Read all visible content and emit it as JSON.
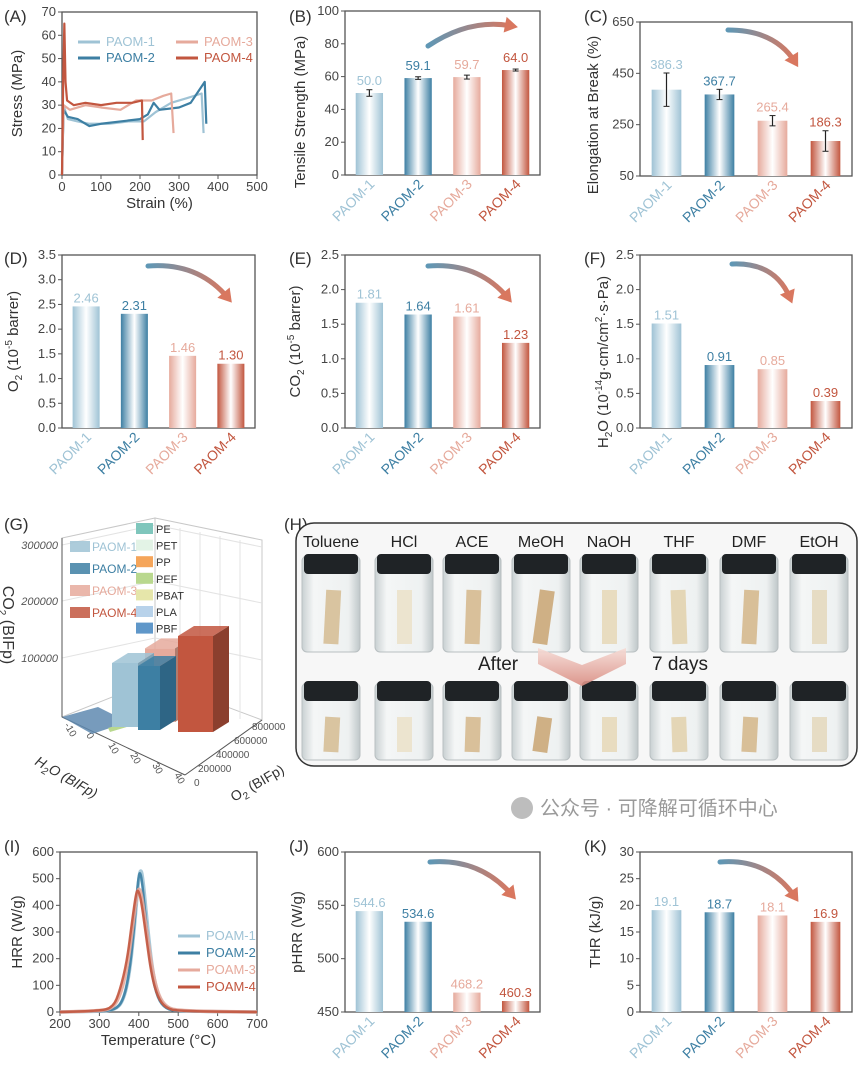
{
  "series_colors": [
    "#9fc3d5",
    "#3d7fa3",
    "#e6aa9c",
    "#c2563f"
  ],
  "watermark": "公众号 · 可降解可循环中心",
  "chart_data": [
    {
      "panel": "(A)",
      "type": "line",
      "xlabel": "Strain (%)",
      "ylabel": [
        {
          "t": "Stress (MPa)"
        }
      ],
      "xlim": [
        0,
        500
      ],
      "ylim": [
        0,
        70
      ],
      "xticks": [
        "0",
        "100",
        "200",
        "300",
        "400",
        "500"
      ],
      "yticks": [
        "0",
        "10",
        "20",
        "30",
        "40",
        "50",
        "60",
        "70"
      ],
      "series": [
        {
          "name": "PAOM-1",
          "points": [
            [
              0,
              0
            ],
            [
              4,
              30
            ],
            [
              15,
              24
            ],
            [
              40,
              23
            ],
            [
              70,
              22
            ],
            [
              120,
              22
            ],
            [
              170,
              23
            ],
            [
              210,
              23
            ],
            [
              240,
              27
            ],
            [
              280,
              31
            ],
            [
              320,
              33
            ],
            [
              358,
              35
            ],
            [
              363,
              18
            ]
          ]
        },
        {
          "name": "PAOM-2",
          "points": [
            [
              0,
              0
            ],
            [
              4,
              28
            ],
            [
              15,
              25
            ],
            [
              40,
              24
            ],
            [
              70,
              21
            ],
            [
              100,
              22
            ],
            [
              150,
              23
            ],
            [
              200,
              24
            ],
            [
              220,
              26
            ],
            [
              235,
              31
            ],
            [
              250,
              28
            ],
            [
              300,
              29
            ],
            [
              330,
              31
            ],
            [
              350,
              36
            ],
            [
              366,
              40
            ],
            [
              370,
              22
            ]
          ]
        },
        {
          "name": "PAOM-3",
          "points": [
            [
              0,
              0
            ],
            [
              4,
              30
            ],
            [
              20,
              28
            ],
            [
              60,
              30
            ],
            [
              100,
              29
            ],
            [
              150,
              28
            ],
            [
              190,
              32
            ],
            [
              230,
              32
            ],
            [
              260,
              34
            ],
            [
              280,
              35
            ],
            [
              286,
              18
            ]
          ]
        },
        {
          "name": "PAOM-4",
          "points": [
            [
              0,
              0
            ],
            [
              3,
              40
            ],
            [
              6,
              65
            ],
            [
              9,
              40
            ],
            [
              13,
              32
            ],
            [
              30,
              30
            ],
            [
              60,
              31
            ],
            [
              100,
              30
            ],
            [
              140,
              31
            ],
            [
              180,
              31
            ],
            [
              205,
              32
            ],
            [
              207,
              15
            ]
          ]
        }
      ]
    },
    {
      "panel": "(B)",
      "type": "bar",
      "categories": [
        "PAOM-1",
        "PAOM-2",
        "PAOM-3",
        "PAOM-4"
      ],
      "values": [
        50.0,
        59.1,
        59.7,
        64.0
      ],
      "errors": [
        2,
        0.8,
        1.2,
        0.6
      ],
      "value_labels": [
        "50.0",
        "59.1",
        "59.7",
        "64.0"
      ],
      "ylabel": [
        {
          "t": "Tensile Strength (MPa)"
        }
      ],
      "ylim": [
        0,
        100
      ],
      "yticks": [
        "0",
        "20",
        "40",
        "60",
        "80",
        "100"
      ],
      "trend": "increasing"
    },
    {
      "panel": "(C)",
      "type": "bar",
      "categories": [
        "PAOM-1",
        "PAOM-2",
        "PAOM-3",
        "PAOM-4"
      ],
      "values": [
        386.3,
        367.7,
        265.4,
        186.3
      ],
      "errors": [
        65,
        20,
        20,
        40
      ],
      "value_labels": [
        "386.3",
        "367.7",
        "265.4",
        "186.3"
      ],
      "ylabel": [
        {
          "t": "Elongation at Break (%)"
        }
      ],
      "ylim": [
        50,
        650
      ],
      "yticks": [
        "50",
        "250",
        "450",
        "650"
      ],
      "trend": "decreasing"
    },
    {
      "panel": "(D)",
      "type": "bar",
      "categories": [
        "PAOM-1",
        "PAOM-2",
        "PAOM-3",
        "PAOM-4"
      ],
      "values": [
        2.46,
        2.31,
        1.46,
        1.3
      ],
      "value_labels": [
        "2.46",
        "2.31",
        "1.46",
        "1.30"
      ],
      "ylabel": [
        {
          "t": "O"
        },
        {
          "t": "2",
          "s": "sub"
        },
        {
          "t": " (10"
        },
        {
          "t": "-5",
          "s": "sup"
        },
        {
          "t": " barrer)"
        }
      ],
      "ylim": [
        0,
        3.5
      ],
      "yticks": [
        "0.0",
        "0.5",
        "1.0",
        "1.5",
        "2.0",
        "2.5",
        "3.0",
        "3.5"
      ],
      "trend": "decreasing"
    },
    {
      "panel": "(E)",
      "type": "bar",
      "categories": [
        "PAOM-1",
        "PAOM-2",
        "PAOM-3",
        "PAOM-4"
      ],
      "values": [
        1.81,
        1.64,
        1.61,
        1.23
      ],
      "value_labels": [
        "1.81",
        "1.64",
        "1.61",
        "1.23"
      ],
      "ylabel": [
        {
          "t": "CO"
        },
        {
          "t": "2",
          "s": "sub"
        },
        {
          "t": " (10"
        },
        {
          "t": "-5",
          "s": "sup"
        },
        {
          "t": " barrer)"
        }
      ],
      "ylim": [
        0,
        2.5
      ],
      "yticks": [
        "0.0",
        "0.5",
        "1.0",
        "1.5",
        "2.0",
        "2.5"
      ],
      "trend": "decreasing"
    },
    {
      "panel": "(F)",
      "type": "bar",
      "categories": [
        "PAOM-1",
        "PAOM-2",
        "PAOM-3",
        "PAOM-4"
      ],
      "values": [
        1.51,
        0.91,
        0.85,
        0.39
      ],
      "value_labels": [
        "1.51",
        "0.91",
        "0.85",
        "0.39"
      ],
      "ylabel": [
        {
          "t": "H"
        },
        {
          "t": "2",
          "s": "sub"
        },
        {
          "t": "O (10"
        },
        {
          "t": "-14",
          "s": "sup"
        },
        {
          "t": "g·cm/cm"
        },
        {
          "t": "2",
          "s": "sup"
        },
        {
          "t": "·s·Pa)"
        }
      ],
      "ylim": [
        0,
        2.5
      ],
      "yticks": [
        "0.0",
        "0.5",
        "1.0",
        "1.5",
        "2.0",
        "2.5"
      ],
      "trend": "decreasing"
    },
    {
      "panel": "(G)",
      "type": "bar3d",
      "zlabel": [
        {
          "t": "CO"
        },
        {
          "t": "2",
          "s": "sub"
        },
        {
          "t": " (BIFp)"
        }
      ],
      "xlabel": [
        {
          "t": "H"
        },
        {
          "t": "2",
          "s": "sub"
        },
        {
          "t": "O (BIFp)"
        }
      ],
      "ylabel": [
        {
          "t": "O"
        },
        {
          "t": "2",
          "s": "sub"
        },
        {
          "t": " (BIFp)"
        }
      ],
      "zticks": [
        "100000",
        "200000",
        "300000"
      ],
      "xticks": [
        "-10",
        "0",
        "10",
        "20",
        "30",
        "40"
      ],
      "yticks": [
        "0",
        "200000",
        "400000",
        "600000",
        "800000"
      ],
      "legend_paom": [
        "PAOM-1",
        "PAOM-2",
        "PAOM-3",
        "PAOM-4"
      ],
      "legend_ref": [
        {
          "name": "PE",
          "color": "#7fc6bc"
        },
        {
          "name": "PET",
          "color": "#e3f3e6"
        },
        {
          "name": "PP",
          "color": "#f5a55a"
        },
        {
          "name": "PEF",
          "color": "#b9d88e"
        },
        {
          "name": "PBAT",
          "color": "#e6e6aa"
        },
        {
          "name": "PLA",
          "color": "#b8d2ea"
        },
        {
          "name": "PBF",
          "color": "#5f97c9"
        }
      ],
      "co2_values": [
        100000,
        100000,
        115000,
        150000
      ]
    },
    {
      "panel": "(H)",
      "type": "image-grid",
      "solvents": [
        "Toluene",
        "HCl",
        "ACE",
        "MeOH",
        "NaOH",
        "THF",
        "DMF",
        "EtOH"
      ],
      "after_label": "After",
      "days_label": "7 days"
    },
    {
      "panel": "(I)",
      "type": "line",
      "xlabel": "Temperature (°C)",
      "ylabel": [
        {
          "t": "HRR (W/g)"
        }
      ],
      "xlim": [
        200,
        700
      ],
      "ylim": [
        0,
        600
      ],
      "xticks": [
        "200",
        "300",
        "400",
        "500",
        "600",
        "700"
      ],
      "yticks": [
        "0",
        "100",
        "200",
        "300",
        "400",
        "500",
        "600"
      ],
      "series": [
        {
          "name": "POAM-1",
          "points": [
            [
              200,
              0
            ],
            [
              300,
              2
            ],
            [
              340,
              8
            ],
            [
              360,
              40
            ],
            [
              375,
              130
            ],
            [
              388,
              300
            ],
            [
              398,
              480
            ],
            [
              405,
              545
            ],
            [
              412,
              480
            ],
            [
              422,
              320
            ],
            [
              435,
              150
            ],
            [
              450,
              55
            ],
            [
              470,
              15
            ],
            [
              500,
              3
            ],
            [
              700,
              0
            ]
          ]
        },
        {
          "name": "POAM-2",
          "points": [
            [
              200,
              0
            ],
            [
              300,
              2
            ],
            [
              340,
              8
            ],
            [
              360,
              42
            ],
            [
              375,
              135
            ],
            [
              388,
              310
            ],
            [
              397,
              480
            ],
            [
              403,
              535
            ],
            [
              410,
              470
            ],
            [
              420,
              310
            ],
            [
              433,
              140
            ],
            [
              448,
              50
            ],
            [
              468,
              12
            ],
            [
              500,
              2
            ],
            [
              700,
              0
            ]
          ]
        },
        {
          "name": "POAM-3",
          "points": [
            [
              200,
              0
            ],
            [
              300,
              3
            ],
            [
              335,
              15
            ],
            [
              355,
              70
            ],
            [
              372,
              180
            ],
            [
              385,
              330
            ],
            [
              395,
              440
            ],
            [
              401,
              468
            ],
            [
              408,
              430
            ],
            [
              420,
              300
            ],
            [
              435,
              150
            ],
            [
              450,
              60
            ],
            [
              470,
              18
            ],
            [
              500,
              4
            ],
            [
              700,
              0
            ]
          ]
        },
        {
          "name": "POAM-4",
          "points": [
            [
              200,
              0
            ],
            [
              300,
              3
            ],
            [
              335,
              18
            ],
            [
              352,
              80
            ],
            [
              370,
              190
            ],
            [
              383,
              340
            ],
            [
              393,
              445
            ],
            [
              398,
              460
            ],
            [
              406,
              420
            ],
            [
              418,
              290
            ],
            [
              432,
              140
            ],
            [
              448,
              55
            ],
            [
              468,
              15
            ],
            [
              500,
              3
            ],
            [
              700,
              0
            ]
          ]
        }
      ]
    },
    {
      "panel": "(J)",
      "type": "bar",
      "categories": [
        "PAOM-1",
        "PAOM-2",
        "PAOM-3",
        "PAOM-4"
      ],
      "values": [
        544.6,
        534.6,
        468.2,
        460.3
      ],
      "value_labels": [
        "544.6",
        "534.6",
        "468.2",
        "460.3"
      ],
      "ylabel": [
        {
          "t": "pHRR (W/g)"
        }
      ],
      "ylim": [
        450,
        600
      ],
      "yticks": [
        "450",
        "500",
        "550",
        "600"
      ],
      "trend": "decreasing"
    },
    {
      "panel": "(K)",
      "type": "bar",
      "categories": [
        "PAOM-1",
        "PAOM-2",
        "PAOM-3",
        "PAOM-4"
      ],
      "values": [
        19.1,
        18.7,
        18.1,
        16.9
      ],
      "value_labels": [
        "19.1",
        "18.7",
        "18.1",
        "16.9"
      ],
      "ylabel": [
        {
          "t": "THR (kJ/g)"
        }
      ],
      "ylim": [
        0,
        30
      ],
      "yticks": [
        "0",
        "5",
        "10",
        "15",
        "20",
        "25",
        "30"
      ],
      "trend": "decreasing"
    }
  ]
}
